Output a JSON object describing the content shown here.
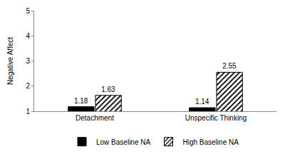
{
  "chart_data": {
    "type": "bar",
    "ylabel": "Negative Affect",
    "categories": [
      "Detachment",
      "Unspecific Thinking"
    ],
    "series": [
      {
        "name": "Low Baseline NA",
        "color": "#000000",
        "marker": "solid",
        "values": [
          1.18,
          1.14
        ]
      },
      {
        "name": "High Baseline NA",
        "color": "#000000",
        "marker": "hatched",
        "values": [
          1.63,
          2.55
        ]
      }
    ],
    "ylim": [
      1,
      5
    ],
    "yticks": [
      1,
      2,
      3,
      4,
      5
    ],
    "grid": false,
    "legend": "bottom",
    "data_labels": true
  }
}
